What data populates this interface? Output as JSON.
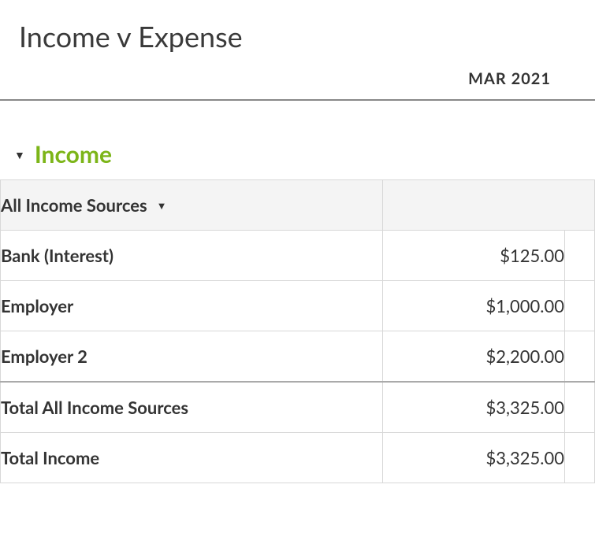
{
  "title": "Income v Expense",
  "period_label": "MAR 2021",
  "colors": {
    "section_title": "#7cb518",
    "text": "#333333",
    "border": "#d8d8d8",
    "header_border": "#888888",
    "group_bg": "#f4f4f4"
  },
  "income": {
    "section_label": "Income",
    "group": {
      "label": "All Income Sources",
      "rows": [
        {
          "label": "Bank (Interest)",
          "value": "$125.00"
        },
        {
          "label": "Employer",
          "value": "$1,000.00"
        },
        {
          "label": "Employer 2",
          "value": "$2,200.00"
        }
      ],
      "total": {
        "label": "Total All Income Sources",
        "value": "$3,325.00"
      }
    },
    "total": {
      "label": "Total Income",
      "value": "$3,325.00"
    }
  }
}
